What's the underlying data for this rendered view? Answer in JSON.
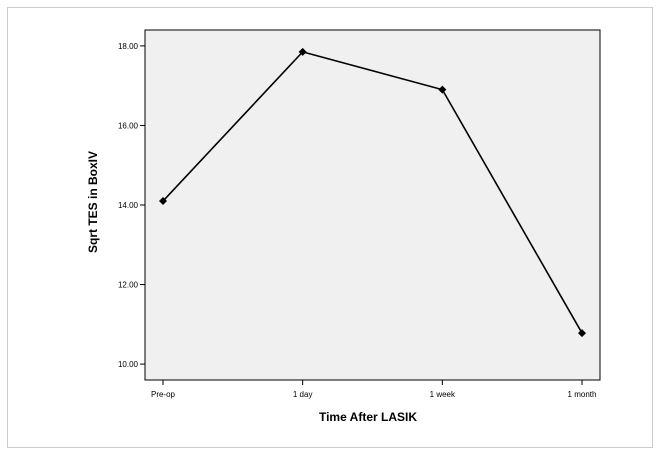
{
  "chart_data": {
    "type": "line",
    "title": "",
    "xlabel": "Time After LASIK",
    "ylabel": "Sqrt TES in BoxIV",
    "categories": [
      "Pre-op",
      "1 day",
      "1 week",
      "1 month"
    ],
    "series": [
      {
        "values": [
          14.1,
          17.85,
          16.9,
          10.78
        ]
      }
    ],
    "ylim": [
      9.6,
      18.4
    ],
    "yticks": [
      10,
      12,
      14,
      16,
      18
    ],
    "ytick_labels": [
      "10.00",
      "12.00",
      "14.00",
      "16.00",
      "18.00"
    ],
    "grid": false,
    "legend": "none",
    "marker": "diamond",
    "colors": {
      "plot_background": "#f0f0f0",
      "line": "#000000",
      "frame": "#000000",
      "outer_border": "#cccccc"
    }
  }
}
